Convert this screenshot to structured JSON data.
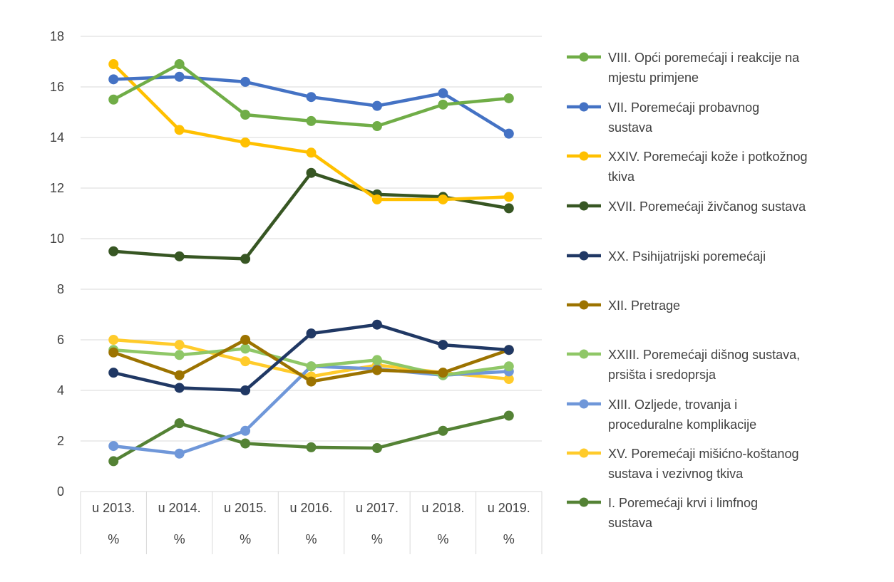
{
  "chart_data": {
    "type": "line",
    "categories": [
      "u 2013.",
      "u 2014.",
      "u 2015.",
      "u 2016.",
      "u 2017.",
      "u 2018.",
      "u 2019."
    ],
    "sub_categories": [
      "%",
      "%",
      "%",
      "%",
      "%",
      "%",
      "%"
    ],
    "ylim": [
      0,
      18
    ],
    "yticks": [
      0,
      2,
      4,
      6,
      8,
      10,
      12,
      14,
      16,
      18
    ],
    "grid": true,
    "legend_position": "right",
    "series": [
      {
        "name": "VIII. Opći poremećaji i reakcije na mjestu primjene",
        "legend_lines": [
          "VIII. Opći poremećaji i reakcije na",
          "mjestu primjene"
        ],
        "color": "#70AD47",
        "values": [
          15.5,
          16.9,
          14.9,
          14.65,
          14.45,
          15.3,
          15.55
        ]
      },
      {
        "name": "VII. Poremećaji probavnog sustava",
        "legend_lines": [
          "VII. Poremećaji probavnog",
          "sustava"
        ],
        "color": "#4472C4",
        "values": [
          16.3,
          16.4,
          16.2,
          15.6,
          15.25,
          15.75,
          14.15
        ]
      },
      {
        "name": "XXIV. Poremećaji kože i potkožnog tkiva",
        "legend_lines": [
          "XXIV. Poremećaji kože i potkožnog",
          "tkiva"
        ],
        "color": "#FFC000",
        "values": [
          16.9,
          14.3,
          13.8,
          13.4,
          11.55,
          11.55,
          11.65
        ]
      },
      {
        "name": "XVII. Poremećaji živčanog sustava",
        "legend_lines": [
          "XVII. Poremećaji živčanog sustava"
        ],
        "color": "#375623",
        "values": [
          9.5,
          9.3,
          9.2,
          12.6,
          11.75,
          11.65,
          11.2
        ]
      },
      {
        "name": "XX. Psihijatrijski poremećaji",
        "legend_lines": [
          "XX. Psihijatrijski poremećaji"
        ],
        "color": "#203864",
        "values": [
          4.7,
          4.1,
          4.0,
          6.25,
          6.6,
          5.8,
          5.6
        ]
      },
      {
        "name": "XII. Pretrage",
        "legend_lines": [
          "XII. Pretrage"
        ],
        "color": "#9C7300",
        "values": [
          5.5,
          4.6,
          6.0,
          4.35,
          4.8,
          4.7,
          5.6
        ]
      },
      {
        "name": "XXIII. Poremećaji dišnog sustava, prsišta i sredoprsja",
        "legend_lines": [
          "XXIII. Poremećaji dišnog sustava,",
          "prsišta i sredoprsja"
        ],
        "color": "#8FC767",
        "values": [
          5.6,
          5.4,
          5.65,
          4.95,
          5.2,
          4.6,
          4.95
        ]
      },
      {
        "name": "XIII. Ozljede, trovanja i proceduralne komplikacije",
        "legend_lines": [
          "XIII. Ozljede, trovanja i",
          "proceduralne komplikacije"
        ],
        "color": "#6F97D9",
        "values": [
          1.8,
          1.5,
          2.4,
          4.95,
          4.85,
          4.6,
          4.75
        ]
      },
      {
        "name": "XV. Poremećaji mišićno-koštanog sustava i vezivnog tkiva",
        "legend_lines": [
          "XV. Poremećaji mišićno-koštanog",
          "sustava i vezivnog tkiva"
        ],
        "color": "#FFCB2B",
        "values": [
          6.0,
          5.8,
          5.15,
          4.55,
          5.0,
          4.7,
          4.45
        ]
      },
      {
        "name": "I. Poremećaji krvi i limfnog sustava",
        "legend_lines": [
          "I. Poremećaji krvi i limfnog",
          "sustava"
        ],
        "color": "#548235",
        "values": [
          1.2,
          2.7,
          1.9,
          1.75,
          1.72,
          2.4,
          3.0
        ]
      }
    ]
  }
}
